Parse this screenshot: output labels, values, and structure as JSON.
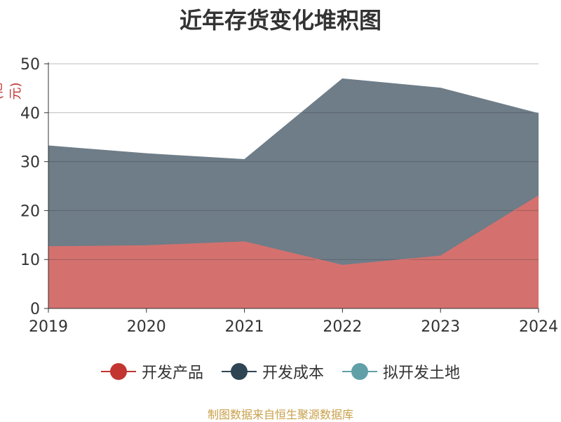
{
  "title": "近年存货变化堆积图",
  "unit_label": "(亿元)",
  "source": "制图数据来自恒生聚源数据库",
  "chart_data": {
    "type": "area",
    "stacked": true,
    "title": "近年存货变化堆积图",
    "ylabel": "(亿元)",
    "x": [
      "2019",
      "2020",
      "2021",
      "2022",
      "2023",
      "2024"
    ],
    "ylim": [
      0,
      50
    ],
    "yticks": [
      0,
      10,
      20,
      30,
      40,
      50
    ],
    "grid": true,
    "legend_position": "bottom",
    "series": [
      {
        "name": "开发产品",
        "color": "#c23531",
        "fill": "#d4716e",
        "values": [
          12.6,
          12.8,
          13.6,
          8.8,
          10.7,
          23.0
        ]
      },
      {
        "name": "开发成本",
        "color": "#2f4554",
        "fill": "#6e7d88",
        "values": [
          20.6,
          18.8,
          16.8,
          38.1,
          34.3,
          16.8
        ]
      },
      {
        "name": "拟开发土地",
        "color": "#61a0a8",
        "fill": "#9cc3c8",
        "values": [
          0,
          0,
          0,
          0,
          0,
          0
        ]
      }
    ]
  }
}
